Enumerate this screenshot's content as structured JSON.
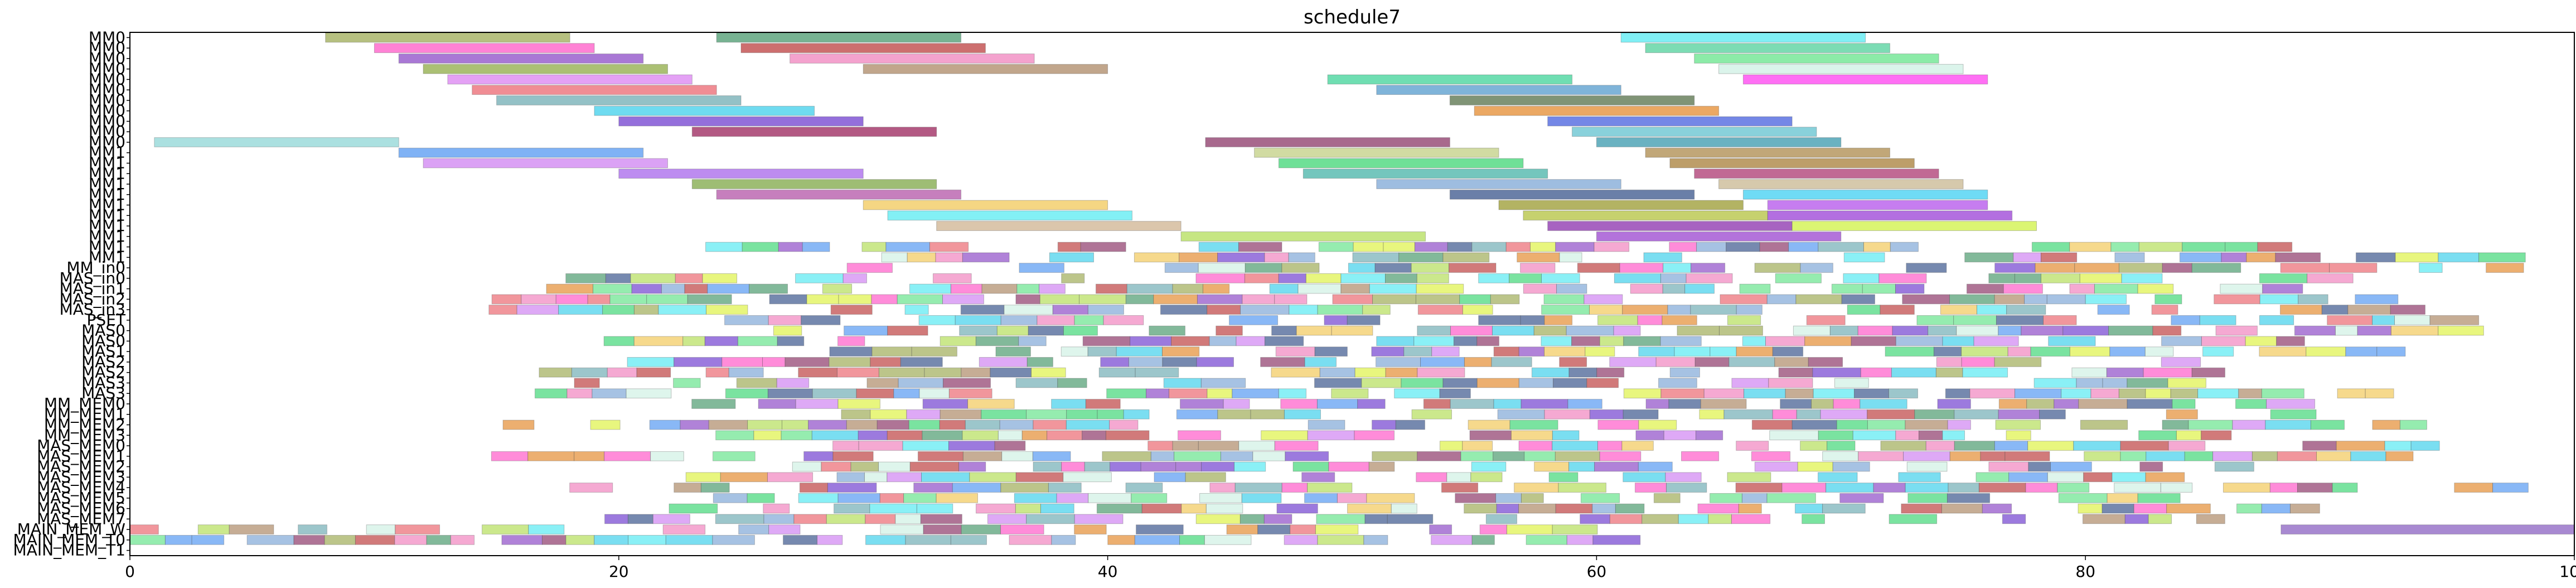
{
  "chart_data": {
    "type": "gantt",
    "title": "schedule7",
    "xlabel": "",
    "ylabel": "",
    "xlim": [
      0,
      100
    ],
    "xticks": [
      0,
      20,
      40,
      60,
      80,
      100
    ],
    "grid": false,
    "rows": [
      "MM0",
      "MM0",
      "MM0",
      "MM0",
      "MM0",
      "MM0",
      "MM0",
      "MM0",
      "MM0",
      "MM0",
      "MM0",
      "MM1",
      "MM1",
      "MM1",
      "MM1",
      "MM1",
      "MM1",
      "MM1",
      "MM1",
      "MM1",
      "MM1",
      "MM1",
      "MM_in0",
      "MAS_in0",
      "MAS_in1",
      "MAS_in2",
      "MAS_in3",
      "PSET",
      "MAS0",
      "MAS0",
      "MAS1",
      "MAS2",
      "MAS2",
      "MAS3",
      "MAS3",
      "MM_MEM0",
      "MM_MEM1",
      "MM_MEM2",
      "MM_MEM3",
      "MAS_MEM0",
      "MAS_MEM1",
      "MAS_MEM2",
      "MAS_MEM3",
      "MAS_MEM4",
      "MAS_MEM5",
      "MAS_MEM6",
      "MAS_MEM7",
      "MAIN_MEM_W",
      "MAIN_MEM_T0",
      "MAIN_MEM_T1"
    ],
    "bars": [
      {
        "row": 0,
        "start": 8,
        "end": 18,
        "color": "#8f9e3c"
      },
      {
        "row": 0,
        "start": 24,
        "end": 34,
        "color": "#2e8b57"
      },
      {
        "row": 0,
        "start": 61,
        "end": 71,
        "color": "#3ce6f0"
      },
      {
        "row": 1,
        "start": 10,
        "end": 19,
        "color": "#ff3fbf"
      },
      {
        "row": 1,
        "start": 25,
        "end": 35,
        "color": "#b22222"
      },
      {
        "row": 1,
        "start": 62,
        "end": 72,
        "color": "#36c98c"
      },
      {
        "row": 2,
        "start": 11,
        "end": 21,
        "color": "#7b2fbe"
      },
      {
        "row": 2,
        "start": 27,
        "end": 37,
        "color": "#ee70b4"
      },
      {
        "row": 2,
        "start": 64,
        "end": 74,
        "color": "#4fe07a"
      },
      {
        "row": 3,
        "start": 12,
        "end": 22,
        "color": "#7e9e2a"
      },
      {
        "row": 3,
        "start": 30,
        "end": 40,
        "color": "#a0764e"
      },
      {
        "row": 3,
        "start": 65,
        "end": 75,
        "color": "#c8eee0"
      },
      {
        "row": 4,
        "start": 13,
        "end": 23,
        "color": "#d56ef0"
      },
      {
        "row": 4,
        "start": 49,
        "end": 59,
        "color": "#22cc88"
      },
      {
        "row": 4,
        "start": 66,
        "end": 76,
        "color": "#ff22ee"
      },
      {
        "row": 5,
        "start": 14,
        "end": 24,
        "color": "#e8505a"
      },
      {
        "row": 5,
        "start": 51,
        "end": 61,
        "color": "#3a8cc4"
      },
      {
        "row": 6,
        "start": 15,
        "end": 25,
        "color": "#5aa0a8"
      },
      {
        "row": 6,
        "start": 54,
        "end": 64,
        "color": "#3c5a2c"
      },
      {
        "row": 7,
        "start": 19,
        "end": 28,
        "color": "#22c8e8"
      },
      {
        "row": 7,
        "start": 55,
        "end": 65,
        "color": "#e07a10"
      },
      {
        "row": 8,
        "start": 20,
        "end": 30,
        "color": "#5a22c8"
      },
      {
        "row": 8,
        "start": 58,
        "end": 68,
        "color": "#2a46d8"
      },
      {
        "row": 9,
        "start": 23,
        "end": 33,
        "color": "#8b0040"
      },
      {
        "row": 9,
        "start": 59,
        "end": 69,
        "color": "#4ab8c8"
      },
      {
        "row": 10,
        "start": 1,
        "end": 11,
        "color": "#7ed0d0"
      },
      {
        "row": 10,
        "start": 44,
        "end": 54,
        "color": "#7a1850"
      },
      {
        "row": 10,
        "start": 60,
        "end": 70,
        "color": "#1a88a0"
      },
      {
        "row": 11,
        "start": 11,
        "end": 21,
        "color": "#3a88f0"
      },
      {
        "row": 11,
        "start": 46,
        "end": 56,
        "color": "#b8c870"
      },
      {
        "row": 11,
        "start": 62,
        "end": 72,
        "color": "#a07830"
      },
      {
        "row": 12,
        "start": 12,
        "end": 22,
        "color": "#c870f0"
      },
      {
        "row": 12,
        "start": 47,
        "end": 57,
        "color": "#22d060"
      },
      {
        "row": 12,
        "start": 63,
        "end": 73,
        "color": "#9a6a18"
      },
      {
        "row": 13,
        "start": 20,
        "end": 30,
        "color": "#9a4ee8"
      },
      {
        "row": 13,
        "start": 48,
        "end": 58,
        "color": "#2aa89a"
      },
      {
        "row": 13,
        "start": 64,
        "end": 74,
        "color": "#a0185a"
      },
      {
        "row": 14,
        "start": 23,
        "end": 33,
        "color": "#6a9a2a"
      },
      {
        "row": 14,
        "start": 51,
        "end": 61,
        "color": "#6a9ad0"
      },
      {
        "row": 14,
        "start": 65,
        "end": 75,
        "color": "#c0ac80"
      },
      {
        "row": 15,
        "start": 24,
        "end": 34,
        "color": "#a83a9a"
      },
      {
        "row": 15,
        "start": 54,
        "end": 64,
        "color": "#1a3a7a"
      },
      {
        "row": 15,
        "start": 66,
        "end": 76,
        "color": "#22c8f0"
      },
      {
        "row": 16,
        "start": 30,
        "end": 40,
        "color": "#f0c040"
      },
      {
        "row": 16,
        "start": 56,
        "end": 66,
        "color": "#8a8a10"
      },
      {
        "row": 16,
        "start": 67,
        "end": 76,
        "color": "#a838e8"
      },
      {
        "row": 17,
        "start": 31,
        "end": 41,
        "color": "#40e8f0"
      },
      {
        "row": 17,
        "start": 57,
        "end": 67,
        "color": "#a8b820"
      },
      {
        "row": 17,
        "start": 67,
        "end": 77,
        "color": "#8a22d0"
      },
      {
        "row": 18,
        "start": 33,
        "end": 43,
        "color": "#c8a880"
      },
      {
        "row": 18,
        "start": 58,
        "end": 68,
        "color": "#7810a0"
      },
      {
        "row": 18,
        "start": 68,
        "end": 78,
        "color": "#c8f028"
      },
      {
        "row": 19,
        "start": 43,
        "end": 53,
        "color": "#a8d840"
      },
      {
        "row": 19,
        "start": 60,
        "end": 70,
        "color": "#8a28c8"
      },
      {
        "row": 47,
        "start": 88,
        "end": 100,
        "color": "#7a4ab8"
      }
    ],
    "dense_rows_start": 20,
    "dense_rows_end": 49,
    "palette": [
      "#ff3fbf",
      "#3a88f0",
      "#8f9e3c",
      "#2e8b57",
      "#e8505a",
      "#7b2fbe",
      "#f0c040",
      "#22c8e8",
      "#a0764e",
      "#4fe07a",
      "#5aa0a8",
      "#c870f0",
      "#1a3a7a",
      "#e07a10",
      "#d8f028",
      "#ee70b4",
      "#3ce6f0",
      "#b22222",
      "#6a9ad0",
      "#c8eee0",
      "#7a1850",
      "#22d060",
      "#a8d840",
      "#5a22c8"
    ]
  }
}
